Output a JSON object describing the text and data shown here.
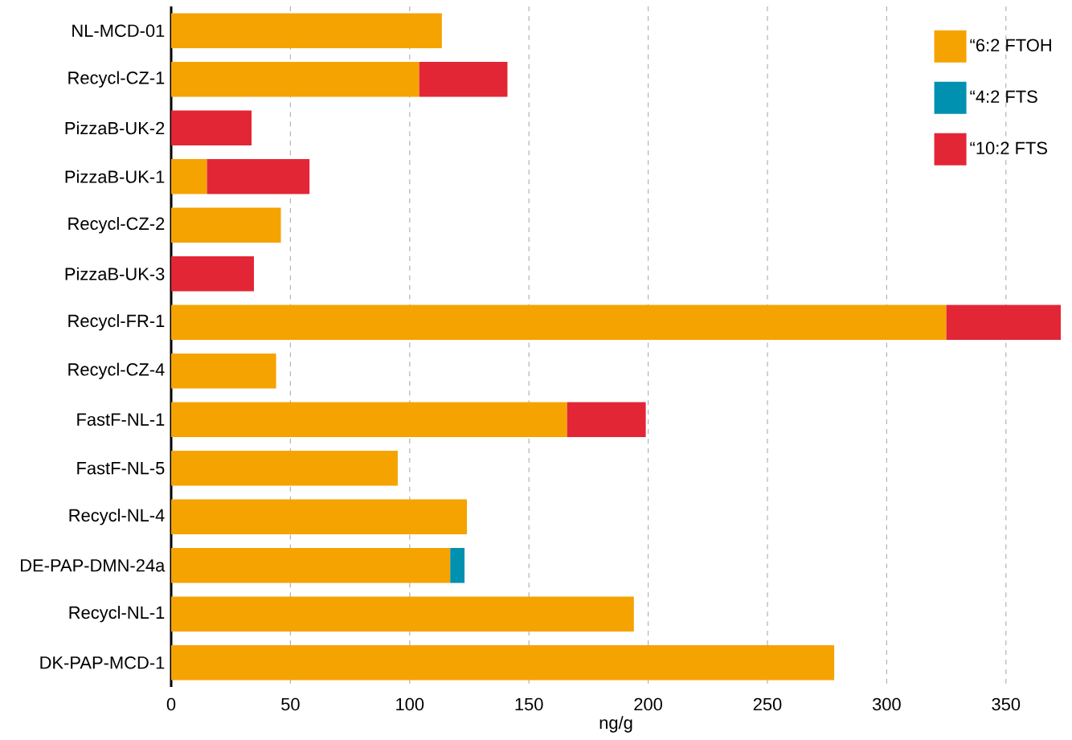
{
  "chart_data": {
    "type": "bar",
    "orientation": "horizontal",
    "stacked": true,
    "xlabel": "ng/g",
    "categories": [
      "NL-MCD-01",
      "Recycl-CZ-1",
      "PizzaB-UK-2",
      "PizzaB-UK-1",
      "Recycl-CZ-2",
      "PizzaB-UK-3",
      "Recycl-FR-1",
      "Recycl-CZ-4",
      "FastF-NL-1",
      "FastF-NL-5",
      "Recycl-NL-4",
      "DE-PAP-DMN-24a",
      "Recycl-NL-1",
      "DK-PAP-MCD-1"
    ],
    "series": [
      {
        "name": "“6:2 FTOH",
        "color": "#f5a300",
        "values": [
          113.5,
          104,
          null,
          15,
          46,
          null,
          325,
          44,
          166,
          95,
          124,
          117,
          194,
          278
        ]
      },
      {
        "name": "“4:2 FTS",
        "color": "#0090b0",
        "values": [
          null,
          null,
          null,
          null,
          null,
          null,
          null,
          null,
          null,
          null,
          null,
          6,
          null,
          null
        ]
      },
      {
        "name": "“10:2 FTS",
        "color": "#e32636",
        "values": [
          null,
          37,
          33.7,
          43,
          null,
          34.7,
          48,
          null,
          33,
          null,
          null,
          null,
          null,
          null
        ]
      }
    ],
    "xlim": [
      0,
      373
    ],
    "xticks": [
      0,
      50,
      100,
      150,
      200,
      250,
      300,
      350
    ],
    "grid": "x",
    "legend": "top right"
  }
}
